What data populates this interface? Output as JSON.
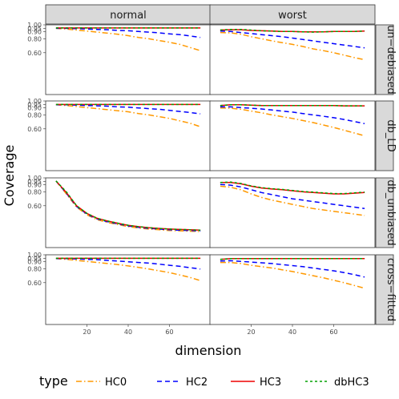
{
  "chart_data": {
    "type": "line",
    "xlabel": "dimension",
    "ylabel": "Coverage",
    "xlim": [
      0,
      80
    ],
    "ylim": [
      0.0,
      1.0
    ],
    "x_ticks": [
      20,
      40,
      60
    ],
    "y_ticks": [
      0.6,
      0.8,
      0.9,
      0.95,
      1.0
    ],
    "y_tick_labels": [
      "0.60",
      "0.80",
      "0.90",
      "0.95",
      "1.00"
    ],
    "columns": [
      "normal",
      "worst"
    ],
    "rows": [
      "un−debiased",
      "db_LD",
      "db_unbiased",
      "cross−fitted"
    ],
    "legend": {
      "title": "type",
      "position": "bottom",
      "entries": [
        "HC0",
        "HC2",
        "HC3",
        "dbHC3"
      ]
    },
    "series_style": {
      "HC0": {
        "color": "#ff9900",
        "dash": "7 3 1.5 3"
      },
      "HC2": {
        "color": "#0000ff",
        "dash": "6 4"
      },
      "HC3": {
        "color": "#ee0000",
        "dash": ""
      },
      "dbHC3": {
        "color": "#00a000",
        "dash": "3 3"
      }
    },
    "x": [
      5,
      10,
      15,
      20,
      25,
      30,
      35,
      40,
      45,
      50,
      55,
      60,
      65,
      70,
      75
    ],
    "panels": [
      {
        "row": "un−debiased",
        "col": "normal",
        "series": [
          {
            "name": "HC0",
            "values": [
              0.95,
              0.94,
              0.925,
              0.91,
              0.895,
              0.88,
              0.865,
              0.845,
              0.82,
              0.8,
              0.775,
              0.75,
              0.72,
              0.675,
              0.63
            ]
          },
          {
            "name": "HC2",
            "values": [
              0.95,
              0.95,
              0.945,
              0.94,
              0.935,
              0.93,
              0.92,
              0.915,
              0.905,
              0.895,
              0.885,
              0.87,
              0.86,
              0.84,
              0.82
            ]
          },
          {
            "name": "HC3",
            "values": [
              0.955,
              0.955,
              0.955,
              0.955,
              0.955,
              0.955,
              0.955,
              0.955,
              0.955,
              0.955,
              0.955,
              0.955,
              0.955,
              0.955,
              0.955
            ]
          },
          {
            "name": "dbHC3",
            "values": [
              0.955,
              0.955,
              0.955,
              0.955,
              0.955,
              0.955,
              0.955,
              0.955,
              0.955,
              0.955,
              0.955,
              0.955,
              0.955,
              0.955,
              0.955
            ]
          }
        ]
      },
      {
        "row": "un−debiased",
        "col": "worst",
        "series": [
          {
            "name": "HC0",
            "values": [
              0.89,
              0.885,
              0.865,
              0.83,
              0.8,
              0.77,
              0.745,
              0.72,
              0.69,
              0.655,
              0.63,
              0.6,
              0.565,
              0.53,
              0.5
            ]
          },
          {
            "name": "HC2",
            "values": [
              0.91,
              0.905,
              0.89,
              0.875,
              0.86,
              0.845,
              0.83,
              0.81,
              0.79,
              0.77,
              0.75,
              0.73,
              0.71,
              0.69,
              0.67
            ]
          },
          {
            "name": "HC3",
            "values": [
              0.925,
              0.93,
              0.93,
              0.92,
              0.915,
              0.91,
              0.905,
              0.905,
              0.9,
              0.9,
              0.9,
              0.905,
              0.905,
              0.905,
              0.91
            ]
          },
          {
            "name": "dbHC3",
            "values": [
              0.925,
              0.935,
              0.935,
              0.925,
              0.915,
              0.91,
              0.905,
              0.905,
              0.9,
              0.895,
              0.9,
              0.905,
              0.905,
              0.905,
              0.91
            ]
          }
        ]
      },
      {
        "row": "db_LD",
        "col": "normal",
        "series": [
          {
            "name": "HC0",
            "values": [
              0.945,
              0.935,
              0.92,
              0.905,
              0.89,
              0.875,
              0.86,
              0.845,
              0.82,
              0.8,
              0.775,
              0.75,
              0.715,
              0.68,
              0.63
            ]
          },
          {
            "name": "HC2",
            "values": [
              0.945,
              0.945,
              0.94,
              0.935,
              0.93,
              0.925,
              0.915,
              0.91,
              0.9,
              0.89,
              0.88,
              0.865,
              0.85,
              0.835,
              0.815
            ]
          },
          {
            "name": "HC3",
            "values": [
              0.95,
              0.95,
              0.95,
              0.95,
              0.95,
              0.95,
              0.95,
              0.95,
              0.95,
              0.95,
              0.95,
              0.95,
              0.95,
              0.95,
              0.95
            ]
          },
          {
            "name": "dbHC3",
            "values": [
              0.95,
              0.95,
              0.95,
              0.95,
              0.95,
              0.95,
              0.95,
              0.95,
              0.95,
              0.95,
              0.95,
              0.95,
              0.95,
              0.95,
              0.95
            ]
          }
        ]
      },
      {
        "row": "db_LD",
        "col": "worst",
        "series": [
          {
            "name": "HC0",
            "values": [
              0.9,
              0.895,
              0.88,
              0.855,
              0.83,
              0.8,
              0.775,
              0.75,
              0.72,
              0.69,
              0.655,
              0.62,
              0.58,
              0.54,
              0.5
            ]
          },
          {
            "name": "HC2",
            "values": [
              0.915,
              0.915,
              0.905,
              0.895,
              0.885,
              0.87,
              0.855,
              0.84,
              0.82,
              0.8,
              0.78,
              0.76,
              0.735,
              0.705,
              0.675
            ]
          },
          {
            "name": "HC3",
            "values": [
              0.935,
              0.945,
              0.945,
              0.94,
              0.935,
              0.935,
              0.935,
              0.935,
              0.935,
              0.935,
              0.935,
              0.935,
              0.93,
              0.93,
              0.93
            ]
          },
          {
            "name": "dbHC3",
            "values": [
              0.935,
              0.945,
              0.945,
              0.94,
              0.935,
              0.935,
              0.935,
              0.935,
              0.935,
              0.935,
              0.935,
              0.935,
              0.93,
              0.93,
              0.93
            ]
          }
        ]
      },
      {
        "row": "db_unbiased",
        "col": "normal",
        "series": [
          {
            "name": "HC0",
            "values": [
              0.955,
              0.77,
              0.58,
              0.47,
              0.4,
              0.36,
              0.33,
              0.3,
              0.28,
              0.265,
              0.255,
              0.245,
              0.24,
              0.235,
              0.23
            ]
          },
          {
            "name": "HC2",
            "values": [
              0.955,
              0.78,
              0.59,
              0.48,
              0.41,
              0.37,
              0.34,
              0.31,
              0.29,
              0.275,
              0.265,
              0.255,
              0.25,
              0.245,
              0.24
            ]
          },
          {
            "name": "HC3",
            "values": [
              0.955,
              0.79,
              0.6,
              0.49,
              0.42,
              0.38,
              0.35,
              0.32,
              0.3,
              0.285,
              0.275,
              0.265,
              0.26,
              0.255,
              0.25
            ]
          },
          {
            "name": "dbHC3",
            "values": [
              0.955,
              0.8,
              0.6,
              0.49,
              0.42,
              0.38,
              0.35,
              0.32,
              0.3,
              0.285,
              0.275,
              0.265,
              0.26,
              0.255,
              0.25
            ]
          }
        ]
      },
      {
        "row": "db_unbiased",
        "col": "worst",
        "series": [
          {
            "name": "HC0",
            "values": [
              0.88,
              0.865,
              0.83,
              0.77,
              0.72,
              0.68,
              0.65,
              0.62,
              0.59,
              0.56,
              0.54,
              0.52,
              0.5,
              0.48,
              0.46
            ]
          },
          {
            "name": "HC2",
            "values": [
              0.905,
              0.895,
              0.87,
              0.83,
              0.79,
              0.76,
              0.73,
              0.7,
              0.68,
              0.66,
              0.64,
              0.62,
              0.6,
              0.58,
              0.56
            ]
          },
          {
            "name": "HC3",
            "values": [
              0.935,
              0.935,
              0.915,
              0.88,
              0.855,
              0.84,
              0.83,
              0.815,
              0.8,
              0.79,
              0.78,
              0.77,
              0.77,
              0.78,
              0.79
            ]
          },
          {
            "name": "dbHC3",
            "values": [
              0.935,
              0.94,
              0.92,
              0.885,
              0.86,
              0.845,
              0.835,
              0.82,
              0.805,
              0.795,
              0.785,
              0.775,
              0.775,
              0.785,
              0.795
            ]
          }
        ]
      },
      {
        "row": "cross−fitted",
        "col": "normal",
        "series": [
          {
            "name": "HC0",
            "values": [
              0.945,
              0.935,
              0.92,
              0.905,
              0.89,
              0.875,
              0.86,
              0.84,
              0.82,
              0.795,
              0.77,
              0.745,
              0.71,
              0.675,
              0.63
            ]
          },
          {
            "name": "HC2",
            "values": [
              0.945,
              0.945,
              0.94,
              0.935,
              0.93,
              0.92,
              0.91,
              0.9,
              0.89,
              0.88,
              0.865,
              0.85,
              0.835,
              0.815,
              0.795
            ]
          },
          {
            "name": "HC3",
            "values": [
              0.95,
              0.95,
              0.95,
              0.95,
              0.95,
              0.95,
              0.95,
              0.95,
              0.95,
              0.95,
              0.95,
              0.95,
              0.95,
              0.95,
              0.95
            ]
          },
          {
            "name": "dbHC3",
            "values": [
              0.95,
              0.95,
              0.95,
              0.95,
              0.95,
              0.95,
              0.95,
              0.95,
              0.95,
              0.95,
              0.95,
              0.95,
              0.95,
              0.95,
              0.95
            ]
          }
        ]
      },
      {
        "row": "cross−fitted",
        "col": "worst",
        "series": [
          {
            "name": "HC0",
            "values": [
              0.89,
              0.89,
              0.875,
              0.85,
              0.83,
              0.81,
              0.785,
              0.76,
              0.73,
              0.7,
              0.67,
              0.635,
              0.6,
              0.56,
              0.52
            ]
          },
          {
            "name": "HC2",
            "values": [
              0.91,
              0.915,
              0.905,
              0.895,
              0.885,
              0.875,
              0.86,
              0.845,
              0.83,
              0.81,
              0.79,
              0.77,
              0.745,
              0.715,
              0.68
            ]
          },
          {
            "name": "HC3",
            "values": [
              0.935,
              0.945,
              0.945,
              0.945,
              0.945,
              0.945,
              0.945,
              0.945,
              0.945,
              0.945,
              0.945,
              0.945,
              0.945,
              0.945,
              0.945
            ]
          },
          {
            "name": "dbHC3",
            "values": [
              0.935,
              0.945,
              0.945,
              0.945,
              0.945,
              0.945,
              0.945,
              0.945,
              0.945,
              0.945,
              0.945,
              0.945,
              0.945,
              0.945,
              0.945
            ]
          }
        ]
      }
    ]
  }
}
